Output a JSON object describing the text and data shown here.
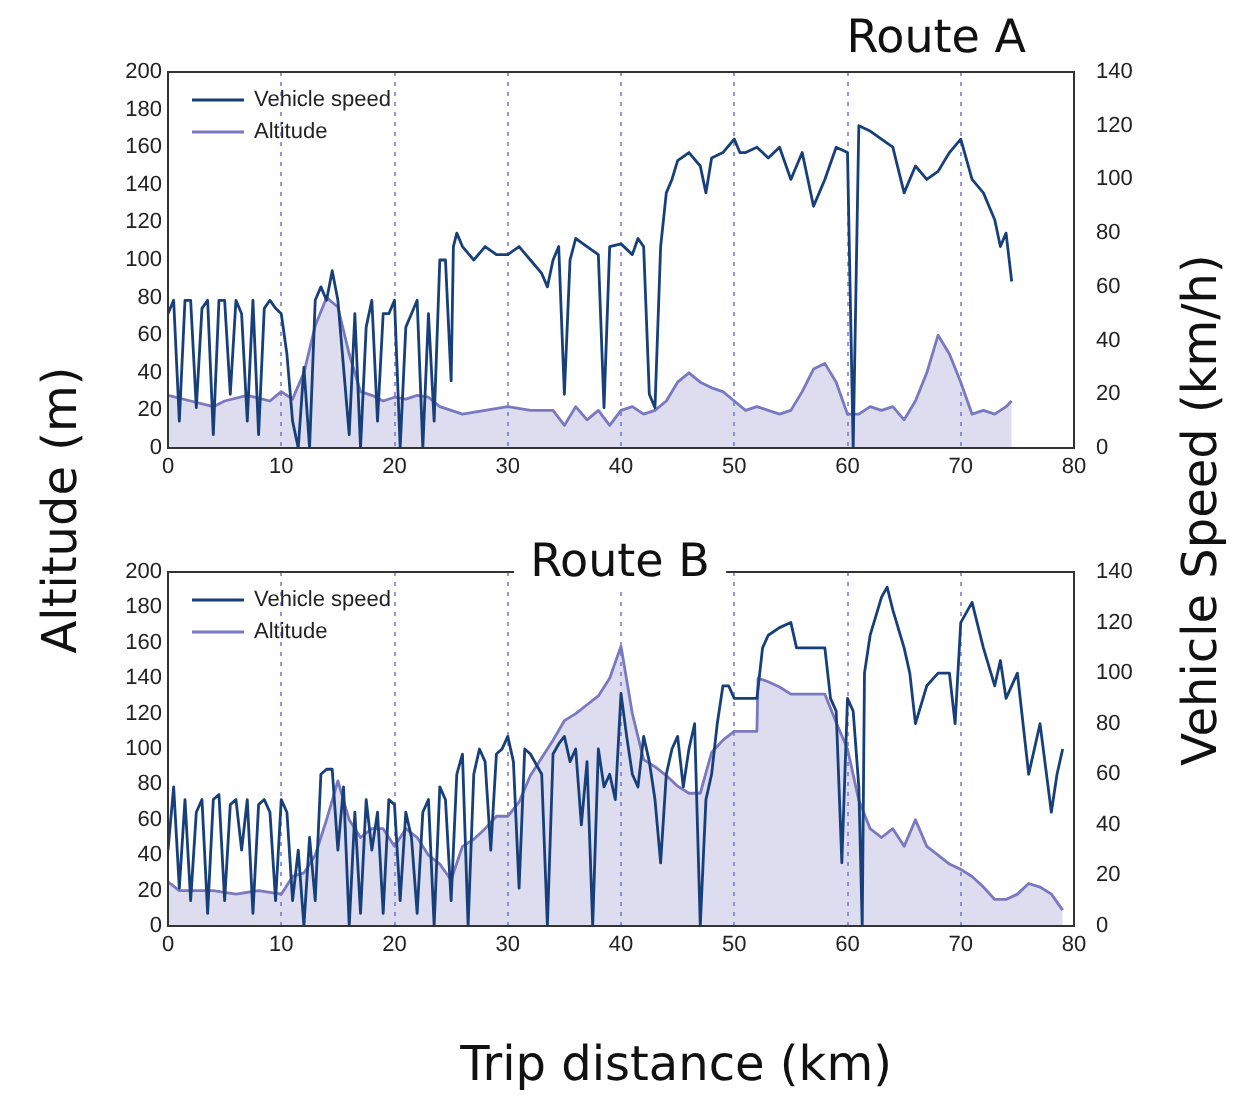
{
  "chart_data": [
    {
      "type": "line",
      "title": "Route A",
      "ylabel": "Altitude (m)",
      "y2label": "Vehicle Speed (km/h)",
      "series": [
        {
          "name": "Vehicle speed",
          "color": "#173f7a",
          "type": "line",
          "axis": "y2",
          "x": [
            0,
            0.5,
            1,
            1.5,
            2,
            2.5,
            3,
            3.5,
            4,
            4.5,
            5,
            5.5,
            6,
            6.5,
            7,
            7.5,
            8,
            8.5,
            9,
            9.5,
            10,
            10.5,
            11,
            11.5,
            12,
            12.5,
            13,
            13.5,
            14,
            14.5,
            15,
            15.5,
            16,
            16.5,
            17,
            17.5,
            18,
            18.5,
            19,
            19.5,
            20,
            20.5,
            21,
            21.5,
            22,
            22.5,
            23,
            23.5,
            24,
            24.5,
            25,
            25.2,
            25.5,
            26,
            27,
            28,
            29,
            30,
            31,
            32,
            33,
            33.5,
            34,
            34.5,
            35,
            35.5,
            36,
            37,
            38,
            38.5,
            39,
            40,
            41,
            41.5,
            42,
            42.5,
            43,
            43.5,
            44,
            44.5,
            45,
            46,
            47,
            47.5,
            48,
            49,
            50,
            50.5,
            51,
            52,
            53,
            54,
            55,
            56,
            57,
            57.5,
            58,
            59,
            60,
            60.5,
            61,
            62,
            63,
            64,
            65,
            66,
            67,
            68,
            69,
            70,
            71,
            72,
            73,
            73.5,
            74,
            74.5
          ],
          "values": [
            50,
            55,
            10,
            55,
            55,
            15,
            52,
            55,
            5,
            55,
            55,
            20,
            55,
            50,
            10,
            55,
            5,
            52,
            55,
            52,
            50,
            35,
            10,
            0,
            30,
            0,
            55,
            60,
            55,
            66,
            55,
            30,
            5,
            50,
            0,
            45,
            55,
            10,
            50,
            50,
            55,
            0,
            45,
            50,
            55,
            0,
            50,
            10,
            70,
            70,
            25,
            75,
            80,
            75,
            70,
            75,
            72,
            72,
            75,
            70,
            65,
            60,
            70,
            75,
            20,
            70,
            78,
            75,
            72,
            15,
            75,
            76,
            72,
            78,
            75,
            20,
            15,
            75,
            95,
            100,
            107,
            110,
            105,
            95,
            108,
            110,
            115,
            110,
            110,
            112,
            108,
            112,
            100,
            110,
            90,
            95,
            100,
            112,
            110,
            0,
            120,
            118,
            115,
            112,
            95,
            105,
            100,
            103,
            110,
            115,
            100,
            95,
            85,
            75,
            80,
            62
          ]
        },
        {
          "name": "Altitude",
          "color": "#7a78bf",
          "type": "area",
          "x": [
            0,
            2,
            4,
            5,
            7,
            9,
            10,
            11,
            12,
            13,
            14,
            15,
            16,
            17,
            18,
            19,
            20,
            21,
            22,
            23,
            24,
            25,
            26,
            28,
            30,
            32,
            34,
            35,
            36,
            37,
            38,
            39,
            40,
            41,
            42,
            43,
            44,
            45,
            46,
            47,
            48,
            49,
            50,
            51,
            52,
            53,
            54,
            55,
            56,
            57,
            58,
            59,
            60,
            61,
            62,
            63,
            64,
            65,
            66,
            67,
            68,
            69,
            70,
            71,
            72,
            73,
            74,
            74.5
          ],
          "values": [
            28,
            25,
            22,
            25,
            28,
            25,
            30,
            26,
            40,
            65,
            80,
            75,
            50,
            30,
            28,
            25,
            27,
            26,
            28,
            27,
            22,
            20,
            18,
            20,
            22,
            20,
            20,
            12,
            22,
            15,
            20,
            12,
            20,
            22,
            18,
            20,
            25,
            35,
            40,
            35,
            32,
            30,
            25,
            20,
            22,
            20,
            18,
            20,
            30,
            42,
            45,
            35,
            18,
            18,
            22,
            20,
            22,
            15,
            25,
            40,
            60,
            50,
            35,
            18,
            20,
            18,
            22,
            25
          ]
        }
      ],
      "xlim": [
        0,
        80
      ],
      "xticks": [
        0,
        10,
        20,
        30,
        40,
        50,
        60,
        70,
        80
      ],
      "ylim": [
        0,
        200
      ],
      "yticks": [
        0,
        20,
        40,
        60,
        80,
        100,
        120,
        140,
        160,
        180,
        200
      ],
      "y2lim": [
        0,
        140
      ],
      "y2ticks": [
        0,
        20,
        40,
        60,
        80,
        100,
        120,
        140
      ],
      "grid": "x",
      "legend": "top left"
    },
    {
      "type": "line",
      "title": "Route B",
      "xlabel": "Trip distance (km)",
      "series": [
        {
          "name": "Vehicle speed",
          "color": "#173f7a",
          "type": "line",
          "axis": "y2",
          "x": [
            0,
            0.5,
            1,
            1.5,
            2,
            2.5,
            3,
            3.5,
            4,
            4.5,
            5,
            5.5,
            6,
            6.5,
            7,
            7.5,
            8,
            8.5,
            9,
            9.5,
            10,
            10.5,
            11,
            11.5,
            12,
            12.5,
            13,
            13.5,
            14,
            14.5,
            15,
            15.5,
            16,
            16.5,
            17,
            17.5,
            18,
            18.5,
            19,
            19.5,
            20,
            20.5,
            21,
            21.5,
            22,
            22.5,
            23,
            23.5,
            24,
            24.5,
            25,
            25.5,
            26,
            26.5,
            27,
            27.5,
            28,
            28.5,
            29,
            29.5,
            30,
            30.5,
            31,
            31.5,
            32,
            33,
            33.5,
            34,
            34.5,
            35,
            35.5,
            36,
            36.5,
            37,
            37.5,
            38,
            38.5,
            39,
            39.5,
            40,
            40.5,
            41,
            41.5,
            42,
            42.5,
            43,
            43.5,
            44,
            44.5,
            45,
            45.5,
            46,
            46.5,
            47,
            47.5,
            48,
            48.5,
            49,
            49.5,
            50,
            52,
            52.5,
            53,
            54,
            55,
            55.5,
            56,
            58,
            58.5,
            59,
            59.5,
            60,
            60.5,
            61,
            61.3,
            61.5,
            62,
            63,
            63.5,
            64,
            65,
            65.5,
            66,
            67,
            68,
            69,
            69.5,
            70,
            71,
            72,
            73,
            73.5,
            74,
            75,
            76,
            77,
            78,
            78.5,
            79
          ],
          "values": [
            30,
            55,
            15,
            50,
            10,
            45,
            50,
            5,
            50,
            52,
            10,
            48,
            50,
            30,
            50,
            5,
            48,
            50,
            45,
            10,
            50,
            45,
            10,
            30,
            0,
            35,
            10,
            60,
            62,
            62,
            30,
            55,
            0,
            45,
            5,
            50,
            30,
            45,
            5,
            50,
            48,
            10,
            45,
            35,
            5,
            45,
            50,
            0,
            55,
            50,
            10,
            60,
            68,
            0,
            60,
            70,
            65,
            30,
            68,
            70,
            75,
            65,
            15,
            70,
            68,
            60,
            0,
            68,
            72,
            75,
            65,
            70,
            40,
            65,
            0,
            70,
            55,
            60,
            50,
            92,
            75,
            60,
            55,
            75,
            65,
            50,
            25,
            60,
            70,
            75,
            55,
            70,
            80,
            0,
            50,
            60,
            80,
            95,
            95,
            90,
            90,
            110,
            115,
            118,
            120,
            110,
            110,
            110,
            90,
            85,
            25,
            90,
            85,
            55,
            0,
            100,
            115,
            130,
            134,
            125,
            110,
            100,
            80,
            95,
            100,
            100,
            80,
            120,
            128,
            110,
            95,
            105,
            90,
            100,
            60,
            80,
            45,
            60,
            70
          ]
        },
        {
          "name": "Altitude",
          "color": "#7a78bf",
          "type": "area",
          "x": [
            0,
            1,
            2,
            4,
            6,
            8,
            10,
            11,
            12,
            13,
            14,
            15,
            16,
            17,
            18,
            19,
            20,
            21,
            22,
            23,
            24,
            25,
            26,
            27,
            28,
            29,
            30,
            31,
            32,
            33,
            34,
            35,
            36,
            37,
            38,
            39,
            40,
            41,
            42,
            43,
            44,
            45,
            46,
            47,
            48,
            49,
            50,
            52,
            52.1,
            53,
            54,
            55,
            56,
            57,
            58,
            59,
            60,
            61,
            62,
            63,
            64,
            65,
            66,
            67,
            68,
            69,
            70,
            71,
            72,
            73,
            74,
            75,
            76,
            77,
            78,
            79
          ],
          "values": [
            25,
            20,
            20,
            20,
            18,
            20,
            18,
            28,
            30,
            40,
            60,
            82,
            60,
            50,
            55,
            55,
            45,
            55,
            50,
            40,
            35,
            26,
            45,
            49,
            55,
            62,
            62,
            70,
            85,
            95,
            105,
            116,
            120,
            125,
            130,
            140,
            158,
            120,
            94,
            90,
            85,
            79,
            75,
            75,
            98,
            105,
            110,
            110,
            140,
            138,
            135,
            131,
            131,
            131,
            131,
            115,
            100,
            71,
            55,
            50,
            55,
            45,
            60,
            45,
            40,
            35,
            32,
            28,
            22,
            15,
            15,
            18,
            24,
            22,
            18,
            9
          ]
        }
      ],
      "xlim": [
        0,
        80
      ],
      "xticks": [
        0,
        10,
        20,
        30,
        40,
        50,
        60,
        70,
        80
      ],
      "ylim": [
        0,
        200
      ],
      "yticks": [
        0,
        20,
        40,
        60,
        80,
        100,
        120,
        140,
        160,
        180,
        200
      ],
      "y2lim": [
        0,
        140
      ],
      "y2ticks": [
        0,
        20,
        40,
        60,
        80,
        100,
        120,
        140
      ],
      "grid": "x",
      "legend": "top left"
    }
  ]
}
